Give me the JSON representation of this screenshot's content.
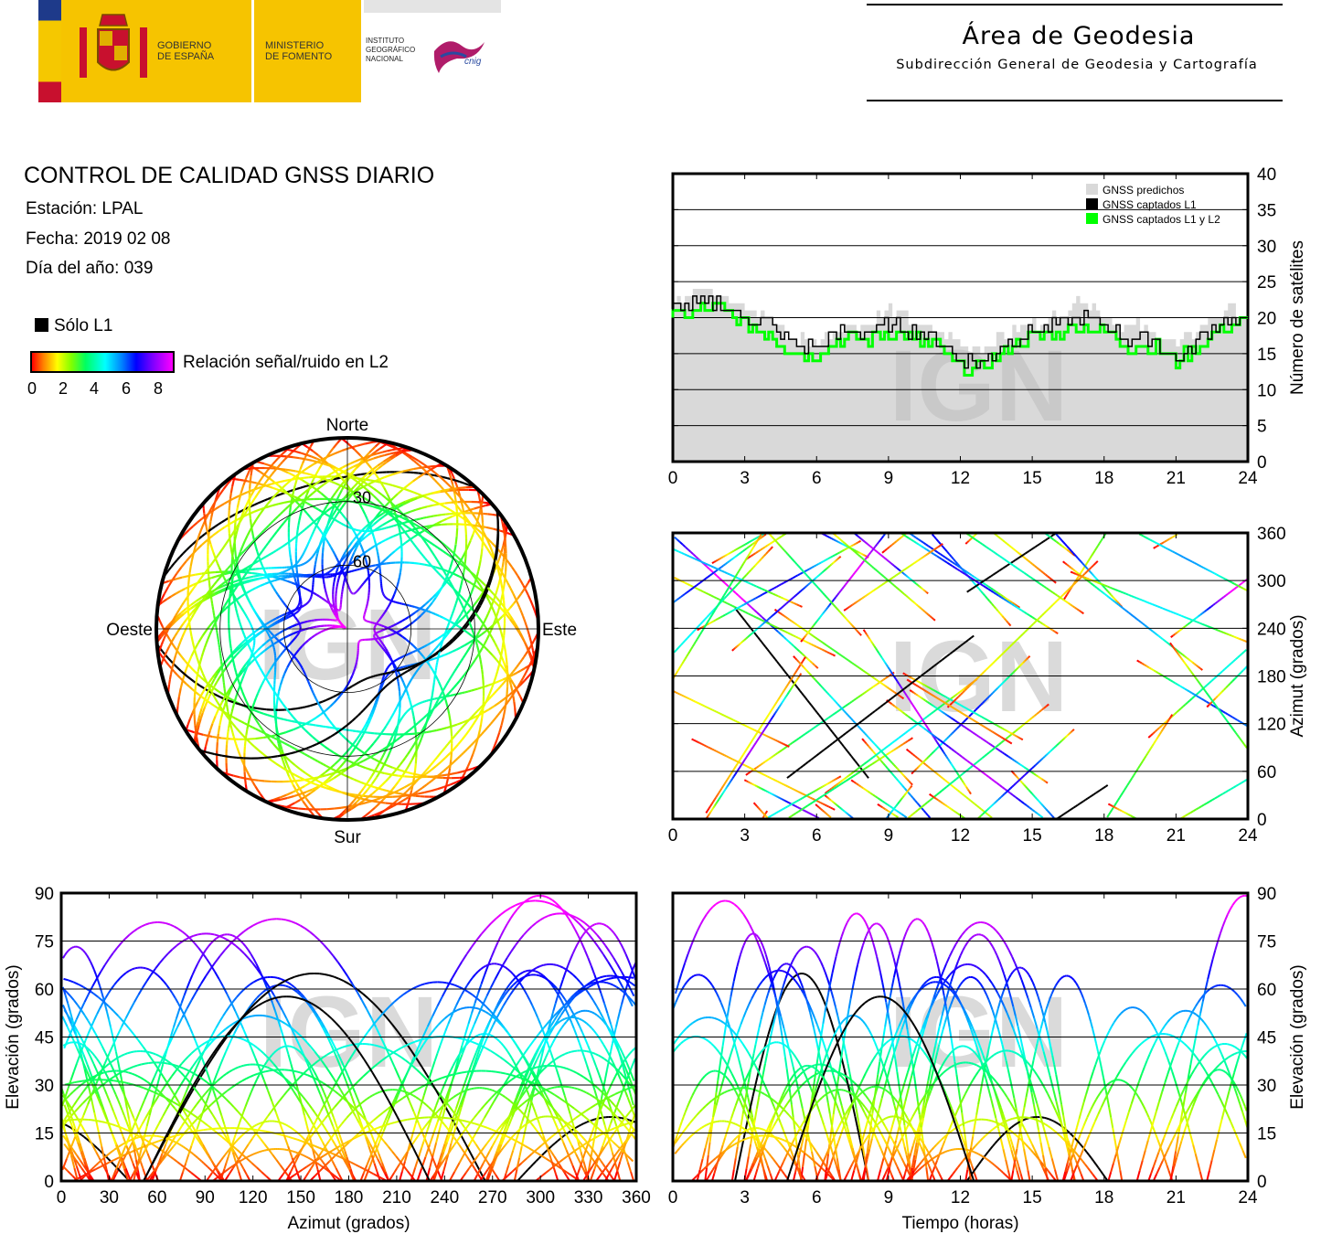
{
  "header": {
    "gov_line1": "GOBIERNO",
    "gov_line2": "DE ESPAÑA",
    "ministry_line1": "MINISTERIO",
    "ministry_line2": "DE FOMENTO",
    "ign_line1": "INSTITUTO",
    "ign_line2": "GEOGRÁFICO",
    "ign_line3": "NACIONAL",
    "cnig": "cnig",
    "area_title": "Área de Geodesia",
    "area_subtitle": "Subdirección General de Geodesia y Cartografía"
  },
  "info": {
    "title": "CONTROL DE CALIDAD GNSS DIARIO",
    "station": "Estación: LPAL",
    "date": "Fecha: 2019 02 08",
    "doy": "Día del año: 039"
  },
  "legend": {
    "l1_only": "Sólo L1",
    "snr_label": "Relación señal/ruido en L2",
    "ticks": [
      "0",
      "2",
      "4",
      "6",
      "8"
    ]
  },
  "watermark": "IGN",
  "colors": {
    "l1_only": "#000000",
    "predicted": "#d9d9d9",
    "captured_l1": "#000000",
    "captured_l1l2": "#00ff00"
  },
  "chart_data": [
    {
      "id": "sky",
      "type": "scatter",
      "labels": {
        "north": "Norte",
        "south": "Sur",
        "east": "Este",
        "west": "Oeste"
      },
      "ring_labels": [
        "30",
        "60"
      ],
      "rings_deg": [
        30,
        60
      ],
      "note_tracks": "many satellite tracks colored by L2 signal-to-noise ratio 0-9"
    },
    {
      "id": "satellites",
      "type": "line",
      "ylabel": "Número de satélites",
      "xlim": [
        0,
        24
      ],
      "ylim": [
        0,
        40
      ],
      "xticks": [
        "0",
        "3",
        "6",
        "9",
        "12",
        "15",
        "18",
        "21",
        "24"
      ],
      "yticks": [
        "0",
        "5",
        "10",
        "15",
        "20",
        "25",
        "30",
        "35",
        "40"
      ],
      "legend": [
        "GNSS predichos",
        "GNSS captados L1",
        "GNSS captados L1 y L2"
      ],
      "x": [
        0,
        1,
        2,
        3,
        4,
        5,
        6,
        7,
        8,
        9,
        10,
        11,
        12,
        13,
        14,
        15,
        16,
        17,
        18,
        19,
        20,
        21,
        22,
        23,
        24
      ],
      "series": [
        {
          "name": "GNSS predichos",
          "values": [
            22,
            25,
            23,
            21,
            20,
            17,
            17,
            19,
            19,
            21,
            19,
            18,
            16,
            16,
            18,
            19,
            20,
            23,
            20,
            19,
            18,
            16,
            19,
            21,
            20
          ]
        },
        {
          "name": "GNSS captados L1",
          "values": [
            21,
            22,
            22,
            20,
            19,
            16,
            16,
            18,
            18,
            19,
            18,
            17,
            14,
            14,
            17,
            18,
            19,
            20,
            19,
            17,
            17,
            14,
            17,
            20,
            19
          ]
        },
        {
          "name": "GNSS captados L1 y L2",
          "values": [
            20,
            21,
            21,
            19,
            18,
            15,
            15,
            17,
            17,
            18,
            17,
            16,
            13,
            13,
            16,
            17,
            18,
            19,
            18,
            16,
            16,
            14,
            16,
            19,
            19
          ]
        }
      ]
    },
    {
      "id": "azimuth_time",
      "type": "scatter",
      "ylabel": "Azimut (grados)",
      "xlim": [
        0,
        24
      ],
      "ylim": [
        0,
        360
      ],
      "xticks": [
        "0",
        "3",
        "6",
        "9",
        "12",
        "15",
        "18",
        "21",
        "24"
      ],
      "yticks": [
        "0",
        "60",
        "120",
        "180",
        "240",
        "300",
        "360"
      ]
    },
    {
      "id": "elev_azimuth",
      "type": "scatter",
      "xlabel": "Azimut (grados)",
      "ylabel": "Elevación (grados)",
      "xlim": [
        0,
        360
      ],
      "ylim": [
        0,
        90
      ],
      "xticks": [
        "0",
        "30",
        "60",
        "90",
        "120",
        "150",
        "180",
        "210",
        "240",
        "270",
        "300",
        "330",
        "360"
      ],
      "yticks": [
        "0",
        "15",
        "30",
        "45",
        "60",
        "75",
        "90"
      ]
    },
    {
      "id": "elev_time",
      "type": "scatter",
      "xlabel": "Tiempo (horas)",
      "ylabel": "Elevación (grados)",
      "xlim": [
        0,
        24
      ],
      "ylim": [
        0,
        90
      ],
      "xticks": [
        "0",
        "3",
        "6",
        "9",
        "12",
        "15",
        "18",
        "21",
        "24"
      ],
      "yticks": [
        "0",
        "15",
        "30",
        "45",
        "60",
        "75",
        "90"
      ]
    }
  ]
}
